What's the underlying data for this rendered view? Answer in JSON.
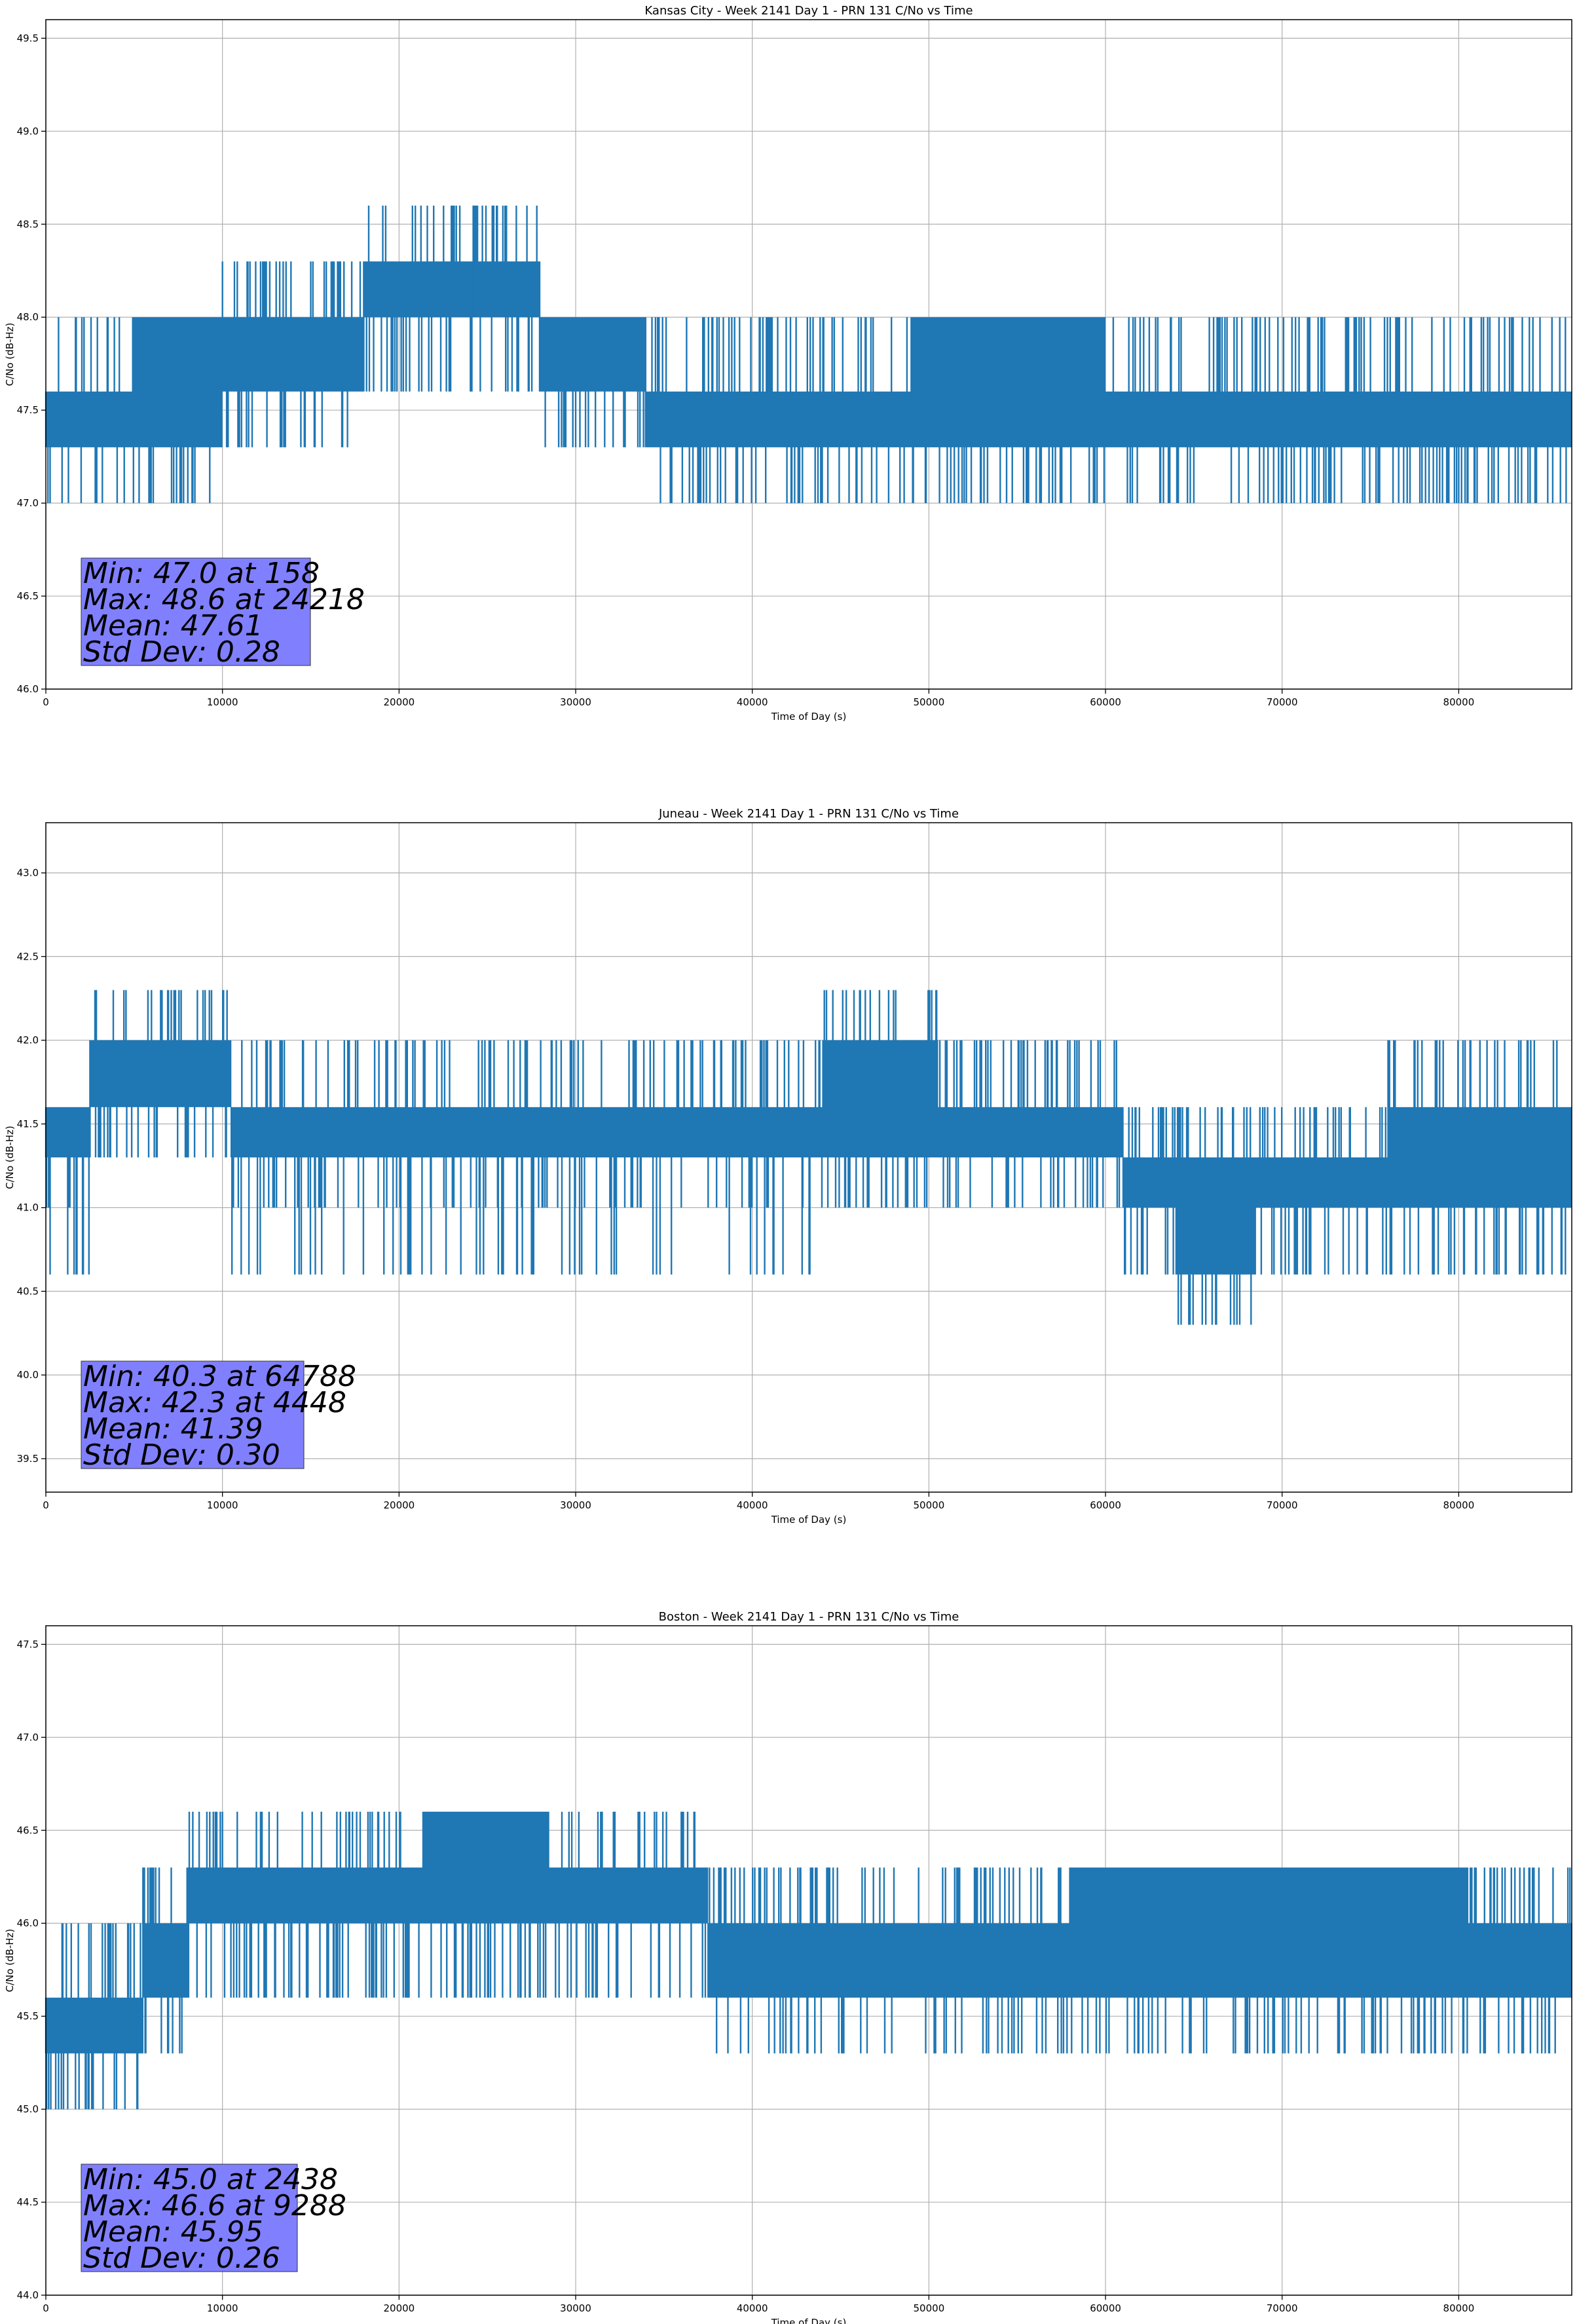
{
  "figure": {
    "background": "#ffffff",
    "line_color": "#1f77b4",
    "stats_box_color": "#8080ff"
  },
  "chart_data": [
    {
      "type": "line",
      "title": "Kansas City - Week 2141 Day 1 - PRN 131 C/No vs Time",
      "xlabel": "Time of Day (s)",
      "ylabel": "C/No (dB-Hz)",
      "xlim": [
        0,
        86400
      ],
      "ylim": [
        46.0,
        49.6
      ],
      "xticks": [
        0,
        10000,
        20000,
        30000,
        40000,
        50000,
        60000,
        70000,
        80000
      ],
      "xtick_labels": [
        "0",
        "10000",
        "20000",
        "30000",
        "40000",
        "50000",
        "60000",
        "70000",
        "80000"
      ],
      "yticks": [
        46.0,
        46.5,
        47.0,
        47.5,
        48.0,
        48.5,
        49.0,
        49.5
      ],
      "ytick_labels": [
        "46.0",
        "46.5",
        "47.0",
        "47.5",
        "48.0",
        "48.5",
        "49.0",
        "49.5"
      ],
      "grid": true,
      "quantization_levels": [
        47.0,
        47.3,
        47.6,
        48.0,
        48.3,
        48.6
      ],
      "series_segments": [
        {
          "x_start": 0,
          "x_end": 5000,
          "band": [
            47.3,
            47.6
          ],
          "excursions_low": [
            47.0
          ],
          "excursions_high": [
            48.0
          ]
        },
        {
          "x_start": 5000,
          "x_end": 10000,
          "band": [
            47.3,
            48.0
          ],
          "excursions_low": [
            47.0
          ],
          "excursions_high": []
        },
        {
          "x_start": 10000,
          "x_end": 18000,
          "band": [
            47.6,
            48.0
          ],
          "excursions_low": [
            47.3
          ],
          "excursions_high": [
            48.3
          ]
        },
        {
          "x_start": 18000,
          "x_end": 28000,
          "band": [
            48.0,
            48.3
          ],
          "excursions_low": [
            47.6
          ],
          "excursions_high": [
            48.6
          ]
        },
        {
          "x_start": 28000,
          "x_end": 34000,
          "band": [
            47.6,
            48.0
          ],
          "excursions_low": [
            47.3
          ],
          "excursions_high": []
        },
        {
          "x_start": 34000,
          "x_end": 49000,
          "band": [
            47.3,
            47.6
          ],
          "excursions_low": [
            47.0
          ],
          "excursions_high": [
            48.0
          ]
        },
        {
          "x_start": 49000,
          "x_end": 60000,
          "band": [
            47.3,
            48.0
          ],
          "excursions_low": [
            47.0
          ],
          "excursions_high": []
        },
        {
          "x_start": 60000,
          "x_end": 86400,
          "band": [
            47.3,
            47.6
          ],
          "excursions_low": [
            47.0
          ],
          "excursions_high": [
            48.0
          ]
        }
      ],
      "peak": {
        "x": 24218,
        "y": 48.6
      },
      "stats": [
        "Min: 47.0 at 158",
        "Max: 48.6 at 24218",
        "Mean: 47.61",
        "Std Dev: 0.28"
      ]
    },
    {
      "type": "line",
      "title": "Juneau - Week 2141 Day 1 - PRN 131 C/No vs Time",
      "xlabel": "Time of Day (s)",
      "ylabel": "C/No (dB-Hz)",
      "xlim": [
        0,
        86400
      ],
      "ylim": [
        39.3,
        43.3
      ],
      "xticks": [
        0,
        10000,
        20000,
        30000,
        40000,
        50000,
        60000,
        70000,
        80000
      ],
      "xtick_labels": [
        "0",
        "10000",
        "20000",
        "30000",
        "40000",
        "50000",
        "60000",
        "70000",
        "80000"
      ],
      "yticks": [
        39.5,
        40.0,
        40.5,
        41.0,
        41.5,
        42.0,
        42.5,
        43.0
      ],
      "ytick_labels": [
        "39.5",
        "40.0",
        "40.5",
        "41.0",
        "41.5",
        "42.0",
        "42.5",
        "43.0"
      ],
      "grid": true,
      "quantization_levels": [
        40.3,
        40.6,
        41.0,
        41.3,
        41.6,
        42.0,
        42.3
      ],
      "series_segments": [
        {
          "x_start": 0,
          "x_end": 2500,
          "band": [
            41.3,
            41.6
          ],
          "excursions_low": [
            41.0,
            40.6
          ],
          "excursions_high": []
        },
        {
          "x_start": 2500,
          "x_end": 10500,
          "band": [
            41.6,
            42.0
          ],
          "excursions_low": [
            41.3
          ],
          "excursions_high": [
            42.3
          ]
        },
        {
          "x_start": 10500,
          "x_end": 44000,
          "band": [
            41.3,
            41.6
          ],
          "excursions_low": [
            41.0,
            40.6
          ],
          "excursions_high": [
            42.0
          ]
        },
        {
          "x_start": 44000,
          "x_end": 50500,
          "band": [
            41.3,
            42.0
          ],
          "excursions_low": [
            41.0
          ],
          "excursions_high": [
            42.3
          ]
        },
        {
          "x_start": 50500,
          "x_end": 61000,
          "band": [
            41.3,
            41.6
          ],
          "excursions_low": [
            41.0
          ],
          "excursions_high": [
            42.0
          ]
        },
        {
          "x_start": 61000,
          "x_end": 64000,
          "band": [
            41.0,
            41.3
          ],
          "excursions_low": [
            40.6
          ],
          "excursions_high": [
            41.6
          ]
        },
        {
          "x_start": 64000,
          "x_end": 68500,
          "band": [
            40.6,
            41.3
          ],
          "excursions_low": [
            40.3
          ],
          "excursions_high": [
            41.6
          ]
        },
        {
          "x_start": 68500,
          "x_end": 76000,
          "band": [
            41.0,
            41.3
          ],
          "excursions_low": [
            40.6
          ],
          "excursions_high": [
            41.6
          ]
        },
        {
          "x_start": 76000,
          "x_end": 86400,
          "band": [
            41.0,
            41.6
          ],
          "excursions_low": [
            40.6
          ],
          "excursions_high": [
            42.0
          ]
        }
      ],
      "peak": {
        "x": 64788,
        "y": 40.3
      },
      "stats": [
        "Min: 40.3 at 64788",
        "Max: 42.3 at 4448",
        "Mean: 41.39",
        "Std Dev: 0.30"
      ]
    },
    {
      "type": "line",
      "title": "Boston - Week 2141 Day 1 - PRN 131 C/No vs Time",
      "xlabel": "Time of Day (s)",
      "ylabel": "C/No (dB-Hz)",
      "xlim": [
        0,
        86400
      ],
      "ylim": [
        44.0,
        47.6
      ],
      "xticks": [
        0,
        10000,
        20000,
        30000,
        40000,
        50000,
        60000,
        70000,
        80000
      ],
      "xtick_labels": [
        "0",
        "10000",
        "20000",
        "30000",
        "40000",
        "50000",
        "60000",
        "70000",
        "80000"
      ],
      "yticks": [
        44.0,
        44.5,
        45.0,
        45.5,
        46.0,
        46.5,
        47.0,
        47.5
      ],
      "ytick_labels": [
        "44.0",
        "44.5",
        "45.0",
        "45.5",
        "46.0",
        "46.5",
        "47.0",
        "47.5"
      ],
      "grid": true,
      "quantization_levels": [
        45.0,
        45.3,
        45.6,
        46.0,
        46.3,
        46.6
      ],
      "series_segments": [
        {
          "x_start": 0,
          "x_end": 5500,
          "band": [
            45.3,
            45.6
          ],
          "excursions_low": [
            45.0
          ],
          "excursions_high": [
            46.0
          ]
        },
        {
          "x_start": 5500,
          "x_end": 8000,
          "band": [
            45.6,
            46.0
          ],
          "excursions_low": [
            45.3
          ],
          "excursions_high": [
            46.3
          ]
        },
        {
          "x_start": 8000,
          "x_end": 21500,
          "band": [
            46.0,
            46.3
          ],
          "excursions_low": [
            45.6
          ],
          "excursions_high": [
            46.6
          ]
        },
        {
          "x_start": 21500,
          "x_end": 28500,
          "band": [
            46.0,
            46.6
          ],
          "excursions_low": [
            45.6
          ],
          "excursions_high": []
        },
        {
          "x_start": 28500,
          "x_end": 37500,
          "band": [
            46.0,
            46.3
          ],
          "excursions_low": [
            45.6
          ],
          "excursions_high": [
            46.6
          ]
        },
        {
          "x_start": 37500,
          "x_end": 58000,
          "band": [
            45.6,
            46.0
          ],
          "excursions_low": [
            45.3
          ],
          "excursions_high": [
            46.3
          ]
        },
        {
          "x_start": 58000,
          "x_end": 80500,
          "band": [
            45.6,
            46.3
          ],
          "excursions_low": [
            45.3
          ],
          "excursions_high": []
        },
        {
          "x_start": 80500,
          "x_end": 86400,
          "band": [
            45.6,
            46.0
          ],
          "excursions_low": [
            45.3
          ],
          "excursions_high": [
            46.3
          ]
        }
      ],
      "peak": {
        "x": 2438,
        "y": 45.0
      },
      "stats": [
        "Min: 45.0 at 2438",
        "Max: 46.6 at 9288",
        "Mean: 45.95",
        "Std Dev: 0.26"
      ]
    }
  ]
}
